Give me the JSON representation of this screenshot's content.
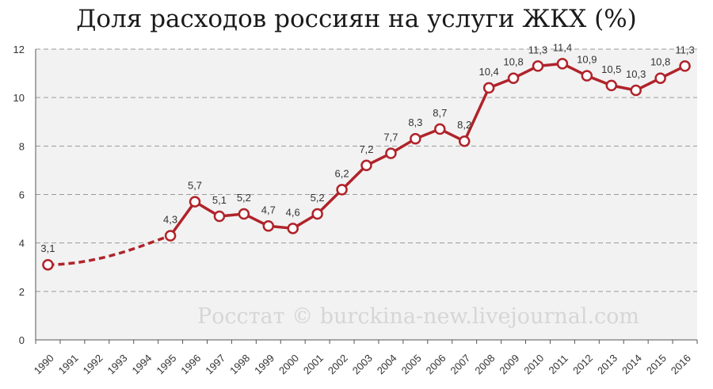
{
  "title": "Доля расходов россиян на услуги ЖКХ (%)",
  "watermark": "Росстат © burckina-new.livejournal.com",
  "colors": {
    "line": "#b0232a",
    "plot_bg": "#f2f2f2",
    "grid": "#9a9a9a",
    "marker_fill": "#ffffff"
  },
  "chart_data": {
    "type": "line",
    "title": "Доля расходов россиян на услуги ЖКХ (%)",
    "xlabel": "",
    "ylabel": "",
    "ylim": [
      0,
      12
    ],
    "yticks": [
      0,
      2,
      4,
      6,
      8,
      10,
      12
    ],
    "grid": true,
    "categories": [
      "1990",
      "1991",
      "1992",
      "1993",
      "1994",
      "1995",
      "1996",
      "1997",
      "1998",
      "1999",
      "2000",
      "2001",
      "2002",
      "2003",
      "2004",
      "2005",
      "2006",
      "2007",
      "2008",
      "2009",
      "2010",
      "2011",
      "2012",
      "2013",
      "2014",
      "2015",
      "2016"
    ],
    "series": [
      {
        "values": [
          3.1,
          null,
          null,
          null,
          null,
          4.3,
          5.7,
          5.1,
          5.2,
          4.7,
          4.6,
          5.2,
          6.2,
          7.2,
          7.7,
          8.3,
          8.7,
          8.2,
          10.4,
          10.8,
          11.3,
          11.4,
          10.9,
          10.5,
          10.3,
          10.8,
          11.3
        ],
        "labels": [
          "3,1",
          "",
          "",
          "",
          "",
          "4,3",
          "5,7",
          "5,1",
          "5,2",
          "4,7",
          "4,6",
          "5,2",
          "6,2",
          "7,2",
          "7,7",
          "8,3",
          "8,7",
          "8,2",
          "10,4",
          "10,8",
          "11,3",
          "11,4",
          "10,9",
          "10,5",
          "10,3",
          "10,8",
          "11,3"
        ],
        "interpolated_segment": [
          "1990",
          "1995"
        ]
      }
    ]
  }
}
